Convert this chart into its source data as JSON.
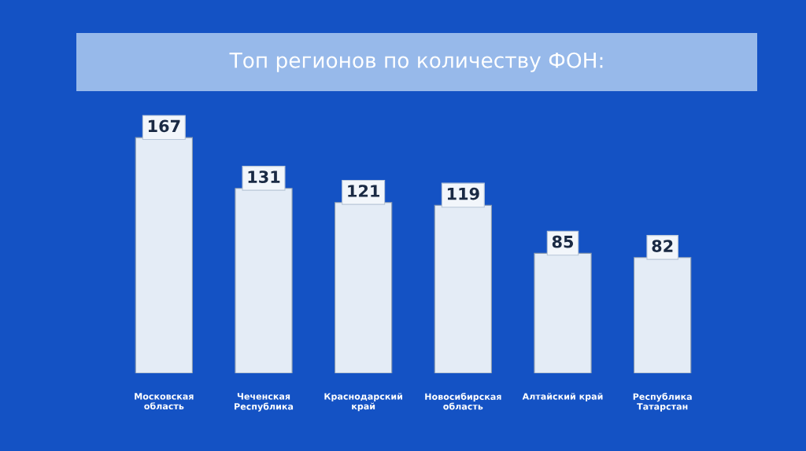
{
  "chart_data": {
    "type": "bar",
    "title": "Топ регионов по количеству ФОН:",
    "categories": [
      "Московская\nобласть",
      "Чеченская\nРеспублика",
      "Краснодарский\nкрай",
      "Новосибирская\nобласть",
      "Алтайский край",
      "Республика\nТатарстан"
    ],
    "values": [
      167,
      131,
      121,
      119,
      85,
      82
    ],
    "color": "#e4ecf6",
    "data_labels": true,
    "grid": false,
    "legend": false
  }
}
